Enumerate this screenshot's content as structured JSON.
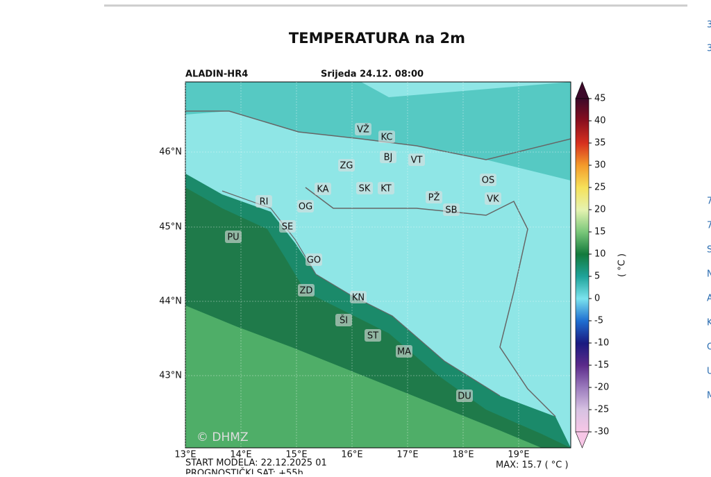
{
  "title": "TEMPERATURA na 2m",
  "model": "ALADIN-HR4",
  "date": "Srijeda 24.12. 08:00",
  "lat_labels": [
    "46°N",
    "45°N",
    "44°N",
    "43°N"
  ],
  "lon_labels": [
    "13°E",
    "14°E",
    "15°E",
    "16°E",
    "17°E",
    "18°E",
    "19°E"
  ],
  "cities": [
    "VŽ",
    "KC",
    "BJ",
    "VT",
    "ZG",
    "KA",
    "SK",
    "KT",
    "OS",
    "PŽ",
    "VK",
    "SB",
    "RI",
    "OG",
    "SE",
    "PU",
    "GO",
    "ZD",
    "KN",
    "ŠI",
    "ST",
    "MA",
    "DU"
  ],
  "colorbar": {
    "label": "( °C )",
    "lim": [
      -30,
      45
    ],
    "ticks": [
      45,
      40,
      35,
      30,
      25,
      20,
      15,
      10,
      5,
      0,
      -5,
      -10,
      -15,
      -20,
      -25,
      -30
    ]
  },
  "watermark": "© DHMZ",
  "start": "START MODELA: 22.12.2025 01",
  "forecast_hour": "PROGNOSTIČKI SAT: +55h",
  "max": "MAX: 15.7 ( °C )",
  "sidebar": [
    "3",
    "3",
    "7",
    "7",
    "S",
    "N",
    "A",
    "K",
    "O",
    "U",
    "M"
  ]
}
